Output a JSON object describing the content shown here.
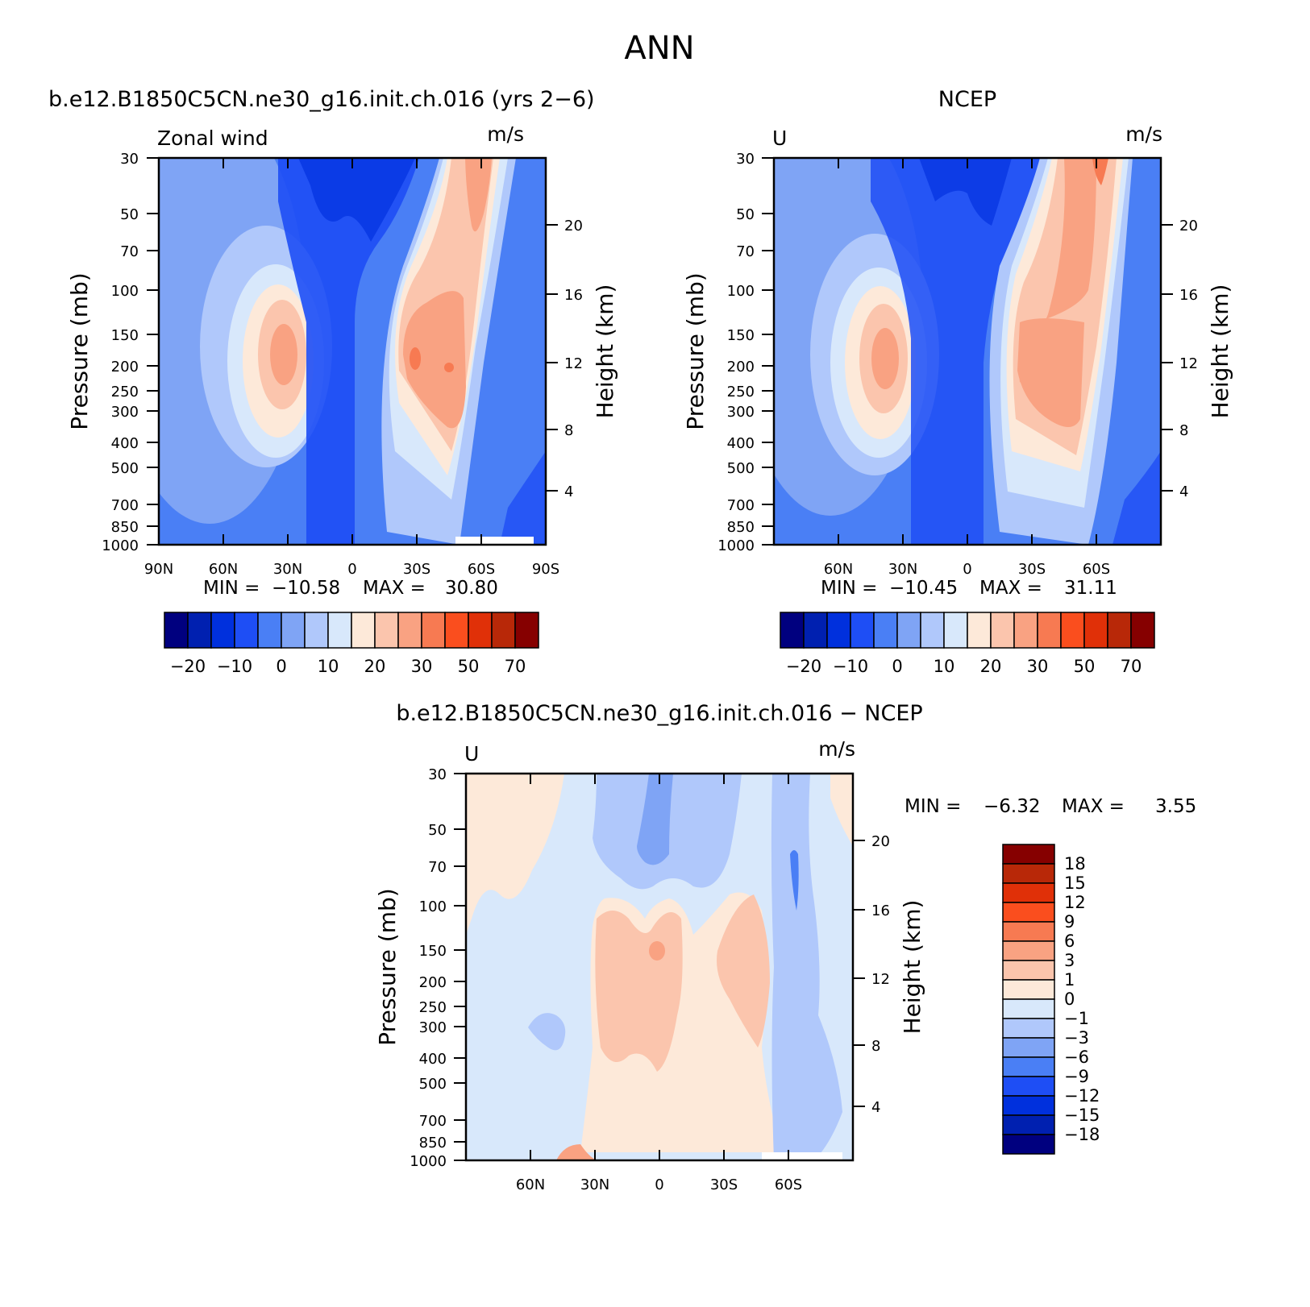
{
  "figure_title": "ANN",
  "chart_data": [
    {
      "type": "heatmap",
      "id": "model",
      "title": "b.e12.B1850C5CN.ne30_g16.init.ch.016 (yrs 2−6)",
      "left_label": "Zonal wind",
      "units": "m/s",
      "ylabel": "Pressure (mb)",
      "ylabel_right": "Height (km)",
      "pressure_ticks": [
        "30",
        "50",
        "70",
        "100",
        "150",
        "200",
        "250",
        "300",
        "400",
        "500",
        "700",
        "850",
        "1000"
      ],
      "height_ticks": [
        "20",
        "16",
        "12",
        "8",
        "4"
      ],
      "x_ticks": [
        "90N",
        "60N",
        "30N",
        "0",
        "30S",
        "60S",
        "90S"
      ],
      "stats": {
        "min_label": "MIN =",
        "min": "−10.58",
        "max_label": "MAX =",
        "max": "30.80"
      },
      "colorbar": {
        "orientation": "horizontal",
        "labels": [
          "−20",
          "−10",
          "0",
          "10",
          "20",
          "30",
          "50",
          "70"
        ],
        "colors": [
          "#00007f",
          "#0020b0",
          "#0030dd",
          "#1e4ef5",
          "#4a7ff5",
          "#7fa4f5",
          "#b0c8fb",
          "#d8e8fb",
          "#fde9d9",
          "#fbc5ad",
          "#f9a282",
          "#f77a52",
          "#fa4e1e",
          "#e03008",
          "#b82808",
          "#860000"
        ]
      },
      "zones": [
        {
          "value": 0,
          "band": 3
        },
        {
          "value": 5,
          "band": 5
        },
        {
          "value": 10,
          "band": 6
        },
        {
          "value": 15,
          "band": 8
        },
        {
          "value": 20,
          "band": 9
        },
        {
          "value": 25,
          "band": 10
        },
        {
          "value": 30,
          "band": 11
        }
      ]
    },
    {
      "type": "heatmap",
      "id": "obs",
      "title": "NCEP",
      "left_label": "U",
      "units": "m/s",
      "ylabel": "Pressure (mb)",
      "ylabel_right": "Height (km)",
      "pressure_ticks": [
        "30",
        "50",
        "70",
        "100",
        "150",
        "200",
        "250",
        "300",
        "400",
        "500",
        "700",
        "850",
        "1000"
      ],
      "height_ticks": [
        "20",
        "16",
        "12",
        "8",
        "4"
      ],
      "x_ticks": [
        "60N",
        "30N",
        "0",
        "30S",
        "60S"
      ],
      "stats": {
        "min_label": "MIN =",
        "min": "−10.45",
        "max_label": "MAX =",
        "max": "31.11"
      },
      "colorbar": {
        "orientation": "horizontal",
        "labels": [
          "−20",
          "−10",
          "0",
          "10",
          "20",
          "30",
          "50",
          "70"
        ],
        "colors": [
          "#00007f",
          "#0020b0",
          "#0030dd",
          "#1e4ef5",
          "#4a7ff5",
          "#7fa4f5",
          "#b0c8fb",
          "#d8e8fb",
          "#fde9d9",
          "#fbc5ad",
          "#f9a282",
          "#f77a52",
          "#fa4e1e",
          "#e03008",
          "#b82808",
          "#860000"
        ]
      }
    },
    {
      "type": "heatmap",
      "id": "diff",
      "title": "b.e12.B1850C5CN.ne30_g16.init.ch.016 − NCEP",
      "left_label": "U",
      "units": "m/s",
      "ylabel": "Pressure (mb)",
      "ylabel_right": "Height (km)",
      "pressure_ticks": [
        "30",
        "50",
        "70",
        "100",
        "150",
        "200",
        "250",
        "300",
        "400",
        "500",
        "700",
        "850",
        "1000"
      ],
      "height_ticks": [
        "20",
        "16",
        "12",
        "8",
        "4"
      ],
      "x_ticks": [
        "60N",
        "30N",
        "0",
        "30S",
        "60S"
      ],
      "stats": {
        "min_label": "MIN =",
        "min": "−6.32",
        "max_label": "MAX =",
        "max": "3.55"
      },
      "colorbar": {
        "orientation": "vertical",
        "labels": [
          "18",
          "15",
          "12",
          "9",
          "6",
          "3",
          "1",
          "0",
          "−1",
          "−3",
          "−6",
          "−9",
          "−12",
          "−15",
          "−18"
        ],
        "colors": [
          "#860000",
          "#b82808",
          "#e03008",
          "#fa4e1e",
          "#f77a52",
          "#f9a282",
          "#fbc5ad",
          "#fde9d9",
          "#d8e8fb",
          "#b0c8fb",
          "#7fa4f5",
          "#4a7ff5",
          "#1e4ef5",
          "#0030dd",
          "#0020b0",
          "#00007f"
        ]
      }
    }
  ]
}
